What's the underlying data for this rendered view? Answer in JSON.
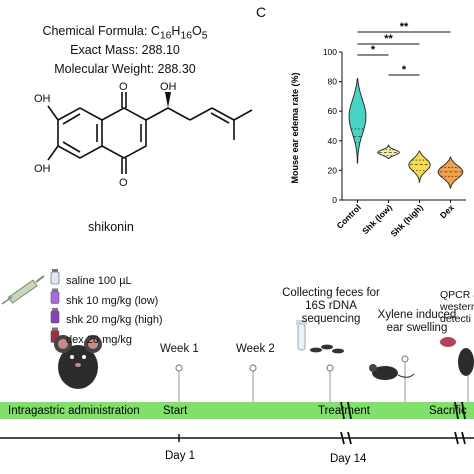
{
  "chemistry": {
    "formula_label": "Chemical Formula: ",
    "formula_C": "C",
    "formula_C_sub": "16",
    "formula_H": "H",
    "formula_H_sub": "16",
    "formula_O": "O",
    "formula_O_sub": "5",
    "exact_mass": "Exact Mass: 288.10",
    "molecular_weight": "Molecular Weight: 288.30",
    "compound_name": "shikonin",
    "atom_OH": "OH",
    "atom_O": "O"
  },
  "panel_letter": "C",
  "chart_data": {
    "type": "violin",
    "ylabel": "Mouse ear edema rate (%)",
    "ylim": [
      0,
      100
    ],
    "yticks": [
      0,
      20,
      40,
      60,
      80,
      100
    ],
    "categories": [
      "Control",
      "Shk (low)",
      "Shk (high)",
      "Dex"
    ],
    "colors": [
      "#49d3c6",
      "#f3ecb4",
      "#f7dc52",
      "#f2a24c"
    ],
    "distributions": [
      {
        "min": 25,
        "max": 82,
        "median": 43,
        "q1": 39,
        "q3": 48,
        "mode": 57,
        "width": 0.55
      },
      {
        "min": 28,
        "max": 37,
        "median": 32,
        "q1": 30,
        "q3": 34,
        "mode": 32,
        "width": 0.7
      },
      {
        "min": 12,
        "max": 33,
        "median": 24,
        "q1": 20,
        "q3": 27,
        "mode": 24,
        "width": 0.7
      },
      {
        "min": 8,
        "max": 29,
        "median": 19,
        "q1": 16,
        "q3": 22,
        "mode": 19,
        "width": 0.8
      }
    ],
    "significance": [
      {
        "from": 0,
        "to": 3,
        "label": "**"
      },
      {
        "from": 0,
        "to": 2,
        "label": "**"
      },
      {
        "from": 0,
        "to": 1,
        "label": "*"
      },
      {
        "from": 1,
        "to": 2,
        "label": "*"
      }
    ]
  },
  "dosing": [
    {
      "label": "saline 100 µL",
      "color": "#dfe6f6"
    },
    {
      "label": "shk  10 mg/kg (low)",
      "color": "#a56cdb"
    },
    {
      "label": "shk  20 mg/kg (high)",
      "color": "#8a3fbf"
    },
    {
      "label": "dex 20 mg/kg",
      "color": "#9c2f4a"
    }
  ],
  "timeline": {
    "bar_left_label": "Intragastric administration",
    "start_label": "Start",
    "treatment_label": "Treatment",
    "sacrifice_label": "Sacrific",
    "week1": "Week 1",
    "week2": "Week 2",
    "feces_line1": "Collecting feces for",
    "feces_line2": "16S rDNA",
    "feces_line3": "sequencing",
    "xylene_line1": "Xylene induced",
    "xylene_line2": "ear swelling",
    "qpcr_line1": "QPCR a",
    "qpcr_line2": "western",
    "qpcr_line3": "detecti",
    "day1": "Day 1",
    "day14": "Day 14",
    "bar_color": "#7fe06a"
  }
}
